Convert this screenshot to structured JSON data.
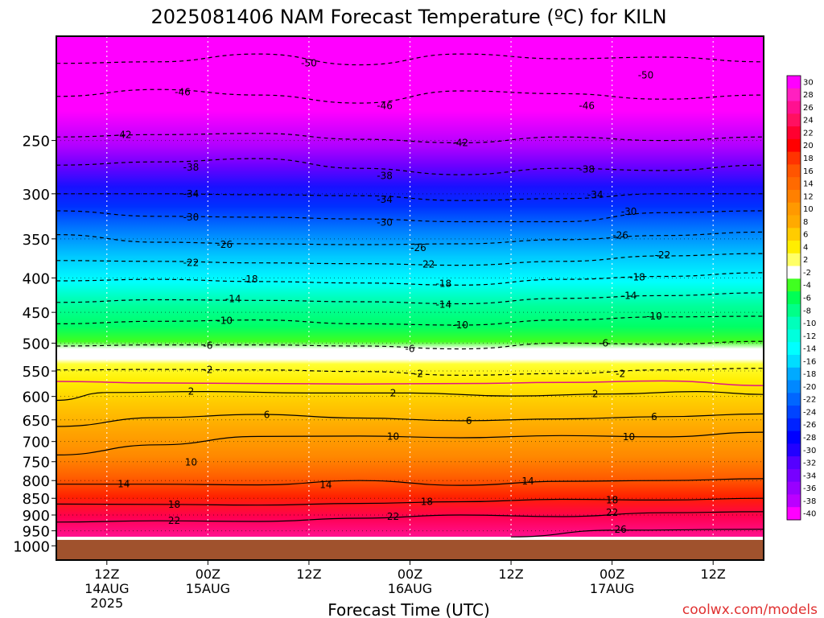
{
  "chart_data": {
    "type": "heatmap",
    "title": "2025081406 NAM Forecast Temperature (ºC) for KILN",
    "xlabel": "Forecast Time (UTC)",
    "ylabel": "",
    "watermark": "coolwx.com/models",
    "y_scale": "log-pressure",
    "ylim": [
      1050,
      175
    ],
    "xlim": [
      0,
      84
    ],
    "y_ticks": [
      250,
      300,
      350,
      400,
      450,
      500,
      550,
      600,
      650,
      700,
      750,
      800,
      850,
      900,
      950,
      1000
    ],
    "x_ticks": [
      {
        "x": 6,
        "time": "12Z",
        "date": "14AUG",
        "year": "2025"
      },
      {
        "x": 18,
        "time": "00Z",
        "date": "15AUG",
        "year": ""
      },
      {
        "x": 30,
        "time": "12Z",
        "date": "",
        "year": ""
      },
      {
        "x": 42,
        "time": "00Z",
        "date": "16AUG",
        "year": ""
      },
      {
        "x": 54,
        "time": "12Z",
        "date": "",
        "year": ""
      },
      {
        "x": 66,
        "time": "00Z",
        "date": "17AUG",
        "year": ""
      },
      {
        "x": 78,
        "time": "12Z",
        "date": "",
        "year": ""
      }
    ],
    "grid": true,
    "ground_pressure": 980,
    "colors": {
      "ground": "#a0522d",
      "freezing_line": "#e01585",
      "contour": "#000000",
      "grid": "#ffffff"
    },
    "colorbar": {
      "labels": [
        "30",
        "28",
        "26",
        "24",
        "22",
        "20",
        "18",
        "16",
        "14",
        "12",
        "10",
        "8",
        "6",
        "4",
        "2",
        "-2",
        "-4",
        "-6",
        "-8",
        "-10",
        "-12",
        "-14",
        "-16",
        "-18",
        "-20",
        "-22",
        "-24",
        "-26",
        "-28",
        "-30",
        "-32",
        "-34",
        "-36",
        "-38",
        "-40"
      ],
      "colors": [
        "#ff00ff",
        "#ff20c0",
        "#ff1090",
        "#ff1060",
        "#ff0030",
        "#ff0000",
        "#ff3300",
        "#ff5500",
        "#ff6a00",
        "#ff8000",
        "#ff9900",
        "#ffaa00",
        "#ffcc00",
        "#ffee00",
        "#ffff66",
        "#ffffff",
        "#40ff20",
        "#00ff55",
        "#00ff88",
        "#00ffbb",
        "#00ffdd",
        "#00ffff",
        "#00ddff",
        "#00aaff",
        "#0088ff",
        "#0066ff",
        "#0044ff",
        "#0022ff",
        "#0000ff",
        "#2200ff",
        "#5500ff",
        "#7700ff",
        "#9900ff",
        "#bb00ff",
        "#ff00ff"
      ]
    },
    "series": [
      {
        "level": -50,
        "style": "dashed",
        "points": [
          [
            0,
            192
          ],
          [
            12,
            191
          ],
          [
            24,
            186
          ],
          [
            36,
            193
          ],
          [
            48,
            186
          ],
          [
            60,
            189
          ],
          [
            72,
            188
          ],
          [
            84,
            191
          ]
        ]
      },
      {
        "level": -46,
        "style": "dashed",
        "points": [
          [
            0,
            215
          ],
          [
            12,
            210
          ],
          [
            24,
            214
          ],
          [
            36,
            220
          ],
          [
            48,
            211
          ],
          [
            60,
            213
          ],
          [
            72,
            217
          ],
          [
            84,
            214
          ]
        ]
      },
      {
        "level": -42,
        "style": "dashed",
        "points": [
          [
            0,
            247
          ],
          [
            12,
            245
          ],
          [
            24,
            244
          ],
          [
            36,
            249
          ],
          [
            48,
            252
          ],
          [
            60,
            247
          ],
          [
            72,
            250
          ],
          [
            84,
            247
          ]
        ]
      },
      {
        "level": -38,
        "style": "dashed",
        "points": [
          [
            0,
            272
          ],
          [
            12,
            269
          ],
          [
            24,
            266
          ],
          [
            36,
            275
          ],
          [
            48,
            281
          ],
          [
            60,
            275
          ],
          [
            72,
            277
          ],
          [
            84,
            272
          ]
        ]
      },
      {
        "level": -34,
        "style": "dashed",
        "points": [
          [
            0,
            300
          ],
          [
            12,
            300
          ],
          [
            24,
            301
          ],
          [
            36,
            302
          ],
          [
            48,
            307
          ],
          [
            60,
            305
          ],
          [
            72,
            300
          ],
          [
            84,
            300
          ]
        ]
      },
      {
        "level": -30,
        "style": "dashed",
        "points": [
          [
            0,
            318
          ],
          [
            12,
            324
          ],
          [
            24,
            325
          ],
          [
            36,
            327
          ],
          [
            48,
            330
          ],
          [
            60,
            330
          ],
          [
            72,
            320
          ],
          [
            84,
            318
          ]
        ]
      },
      {
        "level": -26,
        "style": "dashed",
        "points": [
          [
            0,
            345
          ],
          [
            12,
            354
          ],
          [
            24,
            356
          ],
          [
            36,
            357
          ],
          [
            48,
            356
          ],
          [
            60,
            351
          ],
          [
            72,
            346
          ],
          [
            84,
            342
          ]
        ]
      },
      {
        "level": -22,
        "style": "dashed",
        "points": [
          [
            0,
            377
          ],
          [
            12,
            378
          ],
          [
            24,
            380
          ],
          [
            36,
            381
          ],
          [
            48,
            383
          ],
          [
            60,
            378
          ],
          [
            72,
            371
          ],
          [
            84,
            368
          ]
        ]
      },
      {
        "level": -18,
        "style": "dashed",
        "points": [
          [
            0,
            404
          ],
          [
            12,
            402
          ],
          [
            24,
            405
          ],
          [
            36,
            407
          ],
          [
            48,
            410
          ],
          [
            60,
            402
          ],
          [
            72,
            398
          ],
          [
            84,
            393
          ]
        ]
      },
      {
        "level": -14,
        "style": "dashed",
        "points": [
          [
            0,
            435
          ],
          [
            12,
            431
          ],
          [
            24,
            432
          ],
          [
            36,
            434
          ],
          [
            48,
            437
          ],
          [
            60,
            429
          ],
          [
            72,
            425
          ],
          [
            84,
            421
          ]
        ]
      },
      {
        "level": -10,
        "style": "dashed",
        "points": [
          [
            0,
            468
          ],
          [
            12,
            464
          ],
          [
            24,
            462
          ],
          [
            36,
            468
          ],
          [
            48,
            470
          ],
          [
            60,
            462
          ],
          [
            72,
            457
          ],
          [
            84,
            456
          ]
        ]
      },
      {
        "level": -6,
        "style": "dashed",
        "points": [
          [
            0,
            505
          ],
          [
            12,
            503
          ],
          [
            24,
            503
          ],
          [
            36,
            505
          ],
          [
            48,
            510
          ],
          [
            60,
            500
          ],
          [
            72,
            502
          ],
          [
            84,
            497
          ]
        ]
      },
      {
        "level": -2,
        "style": "dashed",
        "points": [
          [
            0,
            548
          ],
          [
            12,
            547
          ],
          [
            24,
            548
          ],
          [
            36,
            551
          ],
          [
            48,
            558
          ],
          [
            60,
            555
          ],
          [
            72,
            548
          ],
          [
            84,
            545
          ]
        ]
      },
      {
        "level": 0,
        "style": "freezing",
        "points": [
          [
            0,
            570
          ],
          [
            12,
            573
          ],
          [
            24,
            574
          ],
          [
            36,
            575
          ],
          [
            48,
            574
          ],
          [
            60,
            572
          ],
          [
            72,
            569
          ],
          [
            84,
            578
          ]
        ]
      },
      {
        "level": 2,
        "style": "solid",
        "points": [
          [
            0,
            608
          ],
          [
            6,
            592
          ],
          [
            18,
            590
          ],
          [
            30,
            593
          ],
          [
            42,
            593
          ],
          [
            54,
            599
          ],
          [
            66,
            595
          ],
          [
            76,
            590
          ],
          [
            84,
            596
          ]
        ]
      },
      {
        "level": 6,
        "style": "solid",
        "points": [
          [
            0,
            665
          ],
          [
            12,
            645
          ],
          [
            24,
            638
          ],
          [
            36,
            646
          ],
          [
            48,
            652
          ],
          [
            60,
            648
          ],
          [
            72,
            643
          ],
          [
            84,
            637
          ]
        ]
      },
      {
        "level": 10,
        "style": "solid",
        "points": [
          [
            0,
            733
          ],
          [
            12,
            708
          ],
          [
            24,
            688
          ],
          [
            36,
            687
          ],
          [
            48,
            691
          ],
          [
            60,
            686
          ],
          [
            72,
            689
          ],
          [
            84,
            678
          ]
        ]
      },
      {
        "level": 14,
        "style": "solid",
        "points": [
          [
            0,
            810
          ],
          [
            12,
            810
          ],
          [
            24,
            812
          ],
          [
            36,
            800
          ],
          [
            48,
            813
          ],
          [
            60,
            802
          ],
          [
            72,
            800
          ],
          [
            84,
            795
          ]
        ]
      },
      {
        "level": 18,
        "style": "solid",
        "points": [
          [
            0,
            867
          ],
          [
            12,
            868
          ],
          [
            24,
            870
          ],
          [
            36,
            865
          ],
          [
            48,
            860
          ],
          [
            60,
            853
          ],
          [
            72,
            855
          ],
          [
            84,
            850
          ]
        ]
      },
      {
        "level": 22,
        "style": "solid",
        "points": [
          [
            0,
            922
          ],
          [
            12,
            918
          ],
          [
            24,
            920
          ],
          [
            36,
            910
          ],
          [
            48,
            900
          ],
          [
            60,
            905
          ],
          [
            72,
            893
          ],
          [
            84,
            890
          ]
        ]
      },
      {
        "level": 26,
        "style": "solid",
        "points": [
          [
            54,
            970
          ],
          [
            66,
            948
          ],
          [
            84,
            945
          ]
        ]
      }
    ],
    "labels": [
      {
        "text": "-50",
        "x": 30,
        "y": 192
      },
      {
        "text": "-50",
        "x": 70,
        "y": 200
      },
      {
        "text": "-46",
        "x": 15,
        "y": 212
      },
      {
        "text": "-46",
        "x": 39,
        "y": 222
      },
      {
        "text": "-46",
        "x": 63,
        "y": 222
      },
      {
        "text": "-42",
        "x": 8,
        "y": 245
      },
      {
        "text": "-42",
        "x": 48,
        "y": 252
      },
      {
        "text": "-38",
        "x": 16,
        "y": 274
      },
      {
        "text": "-38",
        "x": 39,
        "y": 282
      },
      {
        "text": "-38",
        "x": 63,
        "y": 276
      },
      {
        "text": "-34",
        "x": 16,
        "y": 300
      },
      {
        "text": "-34",
        "x": 39,
        "y": 306
      },
      {
        "text": "-34",
        "x": 64,
        "y": 301
      },
      {
        "text": "-30",
        "x": 16,
        "y": 325
      },
      {
        "text": "-30",
        "x": 39,
        "y": 331
      },
      {
        "text": "-30",
        "x": 68,
        "y": 319
      },
      {
        "text": "-26",
        "x": 20,
        "y": 357
      },
      {
        "text": "-26",
        "x": 43,
        "y": 361
      },
      {
        "text": "-26",
        "x": 67,
        "y": 346
      },
      {
        "text": "-22",
        "x": 16,
        "y": 380
      },
      {
        "text": "-22",
        "x": 44,
        "y": 382
      },
      {
        "text": "-22",
        "x": 72,
        "y": 370
      },
      {
        "text": "-18",
        "x": 23,
        "y": 402
      },
      {
        "text": "-18",
        "x": 46,
        "y": 408
      },
      {
        "text": "-18",
        "x": 69,
        "y": 399
      },
      {
        "text": "-14",
        "x": 21,
        "y": 430
      },
      {
        "text": "-14",
        "x": 46,
        "y": 438
      },
      {
        "text": "-14",
        "x": 68,
        "y": 425
      },
      {
        "text": "-10",
        "x": 20,
        "y": 463
      },
      {
        "text": "-10",
        "x": 48,
        "y": 470
      },
      {
        "text": "-10",
        "x": 71,
        "y": 456
      },
      {
        "text": "-6",
        "x": 18,
        "y": 504
      },
      {
        "text": "-6",
        "x": 42,
        "y": 510
      },
      {
        "text": "-6",
        "x": 65,
        "y": 500
      },
      {
        "text": "-2",
        "x": 18,
        "y": 548
      },
      {
        "text": "-2",
        "x": 43,
        "y": 555
      },
      {
        "text": "-2",
        "x": 67,
        "y": 555
      },
      {
        "text": "2",
        "x": 16,
        "y": 590
      },
      {
        "text": "2",
        "x": 40,
        "y": 593
      },
      {
        "text": "2",
        "x": 64,
        "y": 595
      },
      {
        "text": "6",
        "x": 25,
        "y": 639
      },
      {
        "text": "6",
        "x": 49,
        "y": 652
      },
      {
        "text": "6",
        "x": 71,
        "y": 643
      },
      {
        "text": "10",
        "x": 16,
        "y": 752
      },
      {
        "text": "10",
        "x": 40,
        "y": 688
      },
      {
        "text": "10",
        "x": 68,
        "y": 689
      },
      {
        "text": "14",
        "x": 8,
        "y": 810
      },
      {
        "text": "14",
        "x": 32,
        "y": 812
      },
      {
        "text": "14",
        "x": 56,
        "y": 802
      },
      {
        "text": "18",
        "x": 14,
        "y": 868
      },
      {
        "text": "18",
        "x": 44,
        "y": 860
      },
      {
        "text": "18",
        "x": 66,
        "y": 855
      },
      {
        "text": "22",
        "x": 14,
        "y": 918
      },
      {
        "text": "22",
        "x": 40,
        "y": 905
      },
      {
        "text": "22",
        "x": 66,
        "y": 893
      },
      {
        "text": "26",
        "x": 67,
        "y": 946
      }
    ]
  }
}
